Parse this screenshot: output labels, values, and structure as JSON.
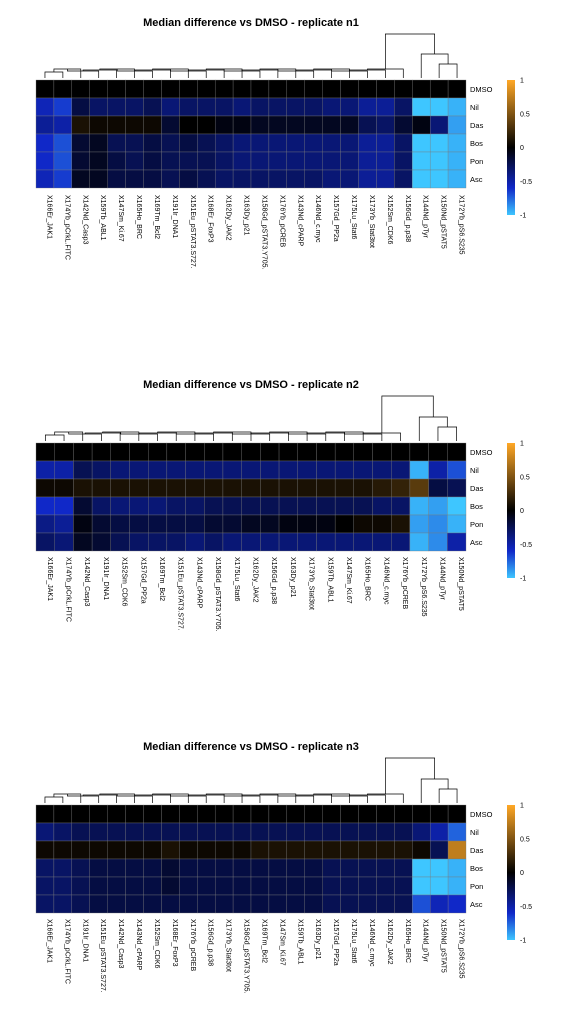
{
  "chart_data": [
    {
      "type": "heatmap",
      "title": "Median difference vs DMSO - replicate n1",
      "rows": [
        "DMSO",
        "Nil",
        "Das",
        "Bos",
        "Pon",
        "Asc"
      ],
      "columns": [
        "X166Er_JAK1",
        "X174Yb_pCrkL.FITC",
        "X142Nd_Casp3",
        "X159Tb_ABL1",
        "X147Sm_Ki.67",
        "X165Ho_BRC",
        "X169Tm_Bcl2",
        "X191Ir_DNA1",
        "X151Eu_pSTAT3.S727.",
        "X168Er_FoxP3",
        "X162Dy_JAK2",
        "X163Dy_p21",
        "X158Gd_pSTAT3.Y705.",
        "X176Yb_pCREB",
        "X143Nd_cPARP",
        "X146Nd_c.myc",
        "X157Gd_PP2a",
        "X175Lu_Stat6",
        "X173Yb_Stat3tot",
        "X152Sm_CDK6",
        "X156Gd_p.p38",
        "X144Nd_pTyr",
        "X150Nd_pSTAT5",
        "X172Yb_pS6.S235"
      ],
      "values": [
        [
          0,
          0,
          0,
          0,
          0,
          0,
          0,
          0,
          0,
          0,
          0,
          0,
          0,
          0,
          0,
          0,
          0,
          0,
          0,
          0,
          0,
          0,
          0,
          0
        ],
        [
          -0.55,
          -0.65,
          -0.2,
          -0.3,
          -0.3,
          -0.3,
          -0.25,
          -0.35,
          -0.3,
          -0.3,
          -0.3,
          -0.35,
          -0.3,
          -0.3,
          -0.3,
          -0.3,
          -0.35,
          -0.35,
          -0.45,
          -0.45,
          -0.3,
          -1,
          -1,
          -0.95
        ],
        [
          -0.45,
          -0.5,
          0.1,
          0.05,
          0.05,
          0.05,
          0.05,
          -0.15,
          0,
          0,
          -0.05,
          -0.05,
          -0.1,
          -0.1,
          -0.1,
          -0.1,
          -0.1,
          -0.1,
          -0.25,
          -0.3,
          -0.15,
          -0.05,
          -0.35,
          -0.9
        ],
        [
          -0.6,
          -0.7,
          -0.15,
          -0.1,
          -0.25,
          -0.25,
          -0.2,
          -0.25,
          -0.2,
          -0.25,
          -0.3,
          -0.35,
          -0.35,
          -0.35,
          -0.35,
          -0.35,
          -0.35,
          -0.35,
          -0.45,
          -0.45,
          -0.3,
          -1,
          -1,
          -0.95
        ],
        [
          -0.6,
          -0.7,
          -0.15,
          -0.1,
          -0.2,
          -0.25,
          -0.2,
          -0.25,
          -0.25,
          -0.25,
          -0.3,
          -0.35,
          -0.35,
          -0.35,
          -0.35,
          -0.35,
          -0.35,
          -0.35,
          -0.45,
          -0.45,
          -0.3,
          -1,
          -1,
          -0.95
        ],
        [
          -0.55,
          -0.65,
          -0.1,
          -0.1,
          -0.2,
          -0.2,
          -0.2,
          -0.25,
          -0.2,
          -0.25,
          -0.3,
          -0.3,
          -0.3,
          -0.3,
          -0.3,
          -0.3,
          -0.35,
          -0.35,
          -0.45,
          -0.45,
          -0.3,
          -1,
          -1,
          -0.95
        ]
      ],
      "scale": {
        "min": -1,
        "max": 1,
        "ticks": [
          1,
          0.5,
          0,
          -0.5,
          -1
        ]
      },
      "colors": {
        "neg": "#3ec6ff",
        "mid": "#000000",
        "pos": "#ffa826"
      }
    },
    {
      "type": "heatmap",
      "title": "Median difference vs DMSO - replicate n2",
      "rows": [
        "DMSO",
        "Nil",
        "Das",
        "Bos",
        "Pon",
        "Asc"
      ],
      "columns": [
        "X166Er_JAK1",
        "X174Yb_pCrkL.FITC",
        "X142Nd_Casp3",
        "X191Ir_DNA1",
        "X152Sm_CDK6",
        "X157Gd_PP2a",
        "X169Tm_Bcl2",
        "X151Eu_pSTAT3.S727.",
        "X143Nd_cPARP",
        "X158Gd_pSTAT3.Y705.",
        "X175Lu_Stat6",
        "X162Dy_JAK2",
        "X156Gd_p.p38",
        "X163Dy_p21",
        "X173Yb_Stat3tot",
        "X159Tb_ABL1",
        "X147Sm_Ki.67",
        "X165Ho_BRC",
        "X146Nd_c.myc",
        "X176Yb_pCREB",
        "X172Yb_pS6.S235",
        "X144Nd_pTyr",
        "X150Nd_pSTAT5"
      ],
      "values": [
        [
          0,
          0,
          0,
          0,
          0,
          0,
          0,
          0,
          0,
          0,
          0,
          0,
          0,
          0,
          0,
          0,
          0,
          0,
          0,
          0,
          0,
          0,
          0
        ],
        [
          -0.5,
          -0.5,
          -0.25,
          -0.3,
          -0.35,
          -0.35,
          -0.35,
          -0.35,
          -0.35,
          -0.35,
          -0.35,
          -0.35,
          -0.35,
          -0.35,
          -0.35,
          -0.35,
          -0.35,
          -0.35,
          -0.35,
          -0.35,
          -0.95,
          -0.5,
          -0.7
        ],
        [
          0.05,
          0.05,
          0.1,
          0.1,
          0.1,
          0.1,
          0.1,
          0.1,
          0.1,
          0.1,
          0.1,
          0.1,
          0.1,
          0.1,
          0.1,
          0.1,
          0.1,
          0.1,
          0.15,
          0.2,
          0.35,
          -0.2,
          -0.25
        ],
        [
          -0.6,
          -0.6,
          -0.15,
          -0.3,
          -0.35,
          -0.35,
          -0.35,
          -0.3,
          -0.3,
          -0.25,
          -0.25,
          -0.25,
          -0.25,
          -0.25,
          -0.25,
          -0.25,
          -0.25,
          -0.25,
          -0.3,
          -0.3,
          -0.95,
          -0.9,
          -1
        ],
        [
          -0.4,
          -0.45,
          -0.05,
          -0.15,
          -0.2,
          -0.2,
          -0.2,
          -0.2,
          -0.2,
          -0.15,
          -0.15,
          -0.1,
          -0.1,
          -0.05,
          -0.05,
          -0.05,
          0,
          0.05,
          0.05,
          0.1,
          -0.9,
          -0.85,
          -0.95
        ],
        [
          -0.3,
          -0.35,
          -0.1,
          -0.15,
          -0.25,
          -0.3,
          -0.3,
          -0.3,
          -0.35,
          -0.3,
          -0.35,
          -0.35,
          -0.35,
          -0.35,
          -0.35,
          -0.35,
          -0.35,
          -0.35,
          -0.35,
          -0.35,
          -0.95,
          -0.85,
          -0.5
        ]
      ],
      "scale": {
        "min": -1,
        "max": 1,
        "ticks": [
          1,
          0.5,
          0,
          -0.5,
          -1
        ]
      },
      "colors": {
        "neg": "#3ec6ff",
        "mid": "#000000",
        "pos": "#ffa826"
      }
    },
    {
      "type": "heatmap",
      "title": "Median difference vs DMSO - replicate n3",
      "rows": [
        "DMSO",
        "Nil",
        "Das",
        "Bos",
        "Pon",
        "Asc"
      ],
      "columns": [
        "X166Er_JAK1",
        "X174Yb_pCrkL.FITC",
        "X191Ir_DNA1",
        "X151Eu_pSTAT3.S727.",
        "X142Nd_Casp3",
        "X143Nd_cPARP",
        "X152Sm_CDK6",
        "X168Er_FoxP3",
        "X176Yb_pCREB",
        "X156Gd_p.p38",
        "X173Yb_Stat3tot",
        "X158Gd_pSTAT3.Y705.",
        "X169Tm_Bcl2",
        "X147Sm_Ki.67",
        "X159Tb_ABL1",
        "X163Dy_p21",
        "X157Gd_PP2a",
        "X175Lu_Stat6",
        "X146Nd_c.myc",
        "X162Dy_JAK2",
        "X165Ho_BRC",
        "X144Nd_pTyr",
        "X150Nd_pSTAT5",
        "X172Yb_pS6.S235"
      ],
      "values": [
        [
          0,
          0,
          0,
          0,
          0,
          0,
          0,
          0,
          0,
          0,
          0,
          0,
          0,
          0,
          0,
          0,
          0,
          0,
          0,
          0,
          0,
          0,
          0,
          0
        ],
        [
          -0.35,
          -0.3,
          -0.25,
          -0.25,
          -0.25,
          -0.25,
          -0.25,
          -0.25,
          -0.25,
          -0.25,
          -0.25,
          -0.25,
          -0.25,
          -0.25,
          -0.25,
          -0.25,
          -0.25,
          -0.25,
          -0.25,
          -0.25,
          -0.25,
          -0.35,
          -0.5,
          -0.75
        ],
        [
          0.05,
          0.05,
          0.05,
          0.05,
          0.05,
          0.05,
          0.05,
          0.1,
          0.05,
          0.05,
          0.05,
          0.05,
          0.1,
          0.1,
          0.1,
          0.1,
          0.1,
          0.1,
          0.1,
          0.1,
          0.1,
          0.05,
          -0.25,
          0.75
        ],
        [
          -0.3,
          -0.3,
          -0.25,
          -0.2,
          -0.2,
          -0.2,
          -0.2,
          -0.15,
          -0.2,
          -0.2,
          -0.2,
          -0.2,
          -0.2,
          -0.2,
          -0.2,
          -0.2,
          -0.25,
          -0.25,
          -0.25,
          -0.25,
          -0.25,
          -1,
          -1,
          -0.95
        ],
        [
          -0.3,
          -0.3,
          -0.25,
          -0.2,
          -0.2,
          -0.2,
          -0.2,
          -0.15,
          -0.2,
          -0.2,
          -0.2,
          -0.2,
          -0.2,
          -0.2,
          -0.2,
          -0.2,
          -0.25,
          -0.25,
          -0.25,
          -0.25,
          -0.25,
          -1,
          -1,
          -0.95
        ],
        [
          -0.3,
          -0.3,
          -0.25,
          -0.2,
          -0.2,
          -0.2,
          -0.2,
          -0.2,
          -0.2,
          -0.2,
          -0.2,
          -0.2,
          -0.2,
          -0.2,
          -0.2,
          -0.2,
          -0.25,
          -0.25,
          -0.25,
          -0.25,
          -0.25,
          -0.7,
          -0.55,
          -0.6
        ]
      ],
      "scale": {
        "min": -1,
        "max": 1,
        "ticks": [
          1,
          0.5,
          0,
          -0.5,
          -1
        ]
      },
      "colors": {
        "neg": "#3ec6ff",
        "mid": "#000000",
        "pos": "#ffa826"
      }
    }
  ]
}
